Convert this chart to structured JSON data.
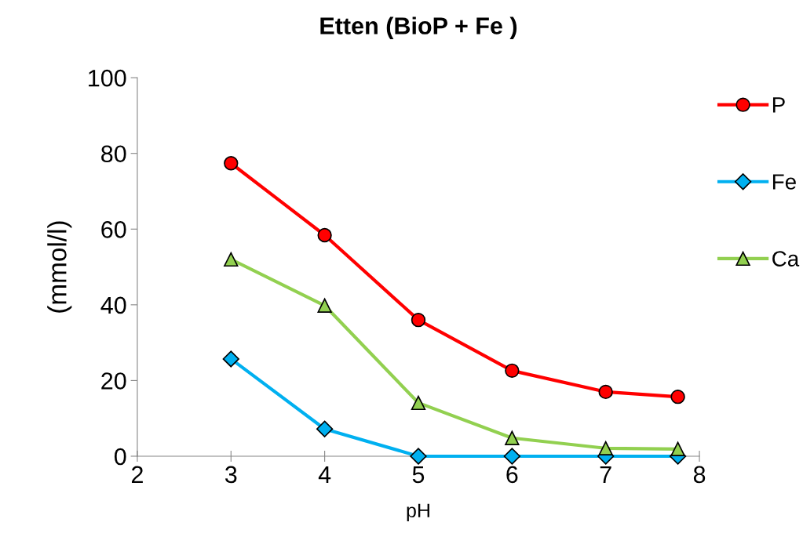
{
  "chart_data": {
    "type": "line",
    "title": "Etten (BioP + Fe )",
    "xlabel": "pH",
    "ylabel": "(mmol/l)",
    "xlim": [
      2,
      8
    ],
    "xticks": [
      2,
      3,
      4,
      5,
      6,
      7,
      8
    ],
    "ylim": [
      0,
      100
    ],
    "yticks": [
      0,
      20,
      40,
      60,
      80,
      100
    ],
    "grid": false,
    "legend": "right",
    "series": [
      {
        "name": "P",
        "color": "#ff0000",
        "marker": "circle",
        "x": [
          3,
          4,
          5,
          6,
          7,
          7.77
        ],
        "values": [
          77.4,
          58.4,
          36.0,
          22.6,
          17.0,
          15.7
        ]
      },
      {
        "name": "Fe",
        "color": "#00b0f0",
        "marker": "diamond",
        "x": [
          3,
          4,
          5,
          6,
          7,
          7.77
        ],
        "values": [
          25.7,
          7.2,
          0,
          0,
          0,
          0
        ]
      },
      {
        "name": "Ca",
        "color": "#92d050",
        "marker": "triangle",
        "x": [
          3,
          4,
          5,
          6,
          7,
          7.77
        ],
        "values": [
          52.0,
          39.8,
          14.1,
          4.8,
          2.1,
          1.9
        ]
      }
    ]
  }
}
